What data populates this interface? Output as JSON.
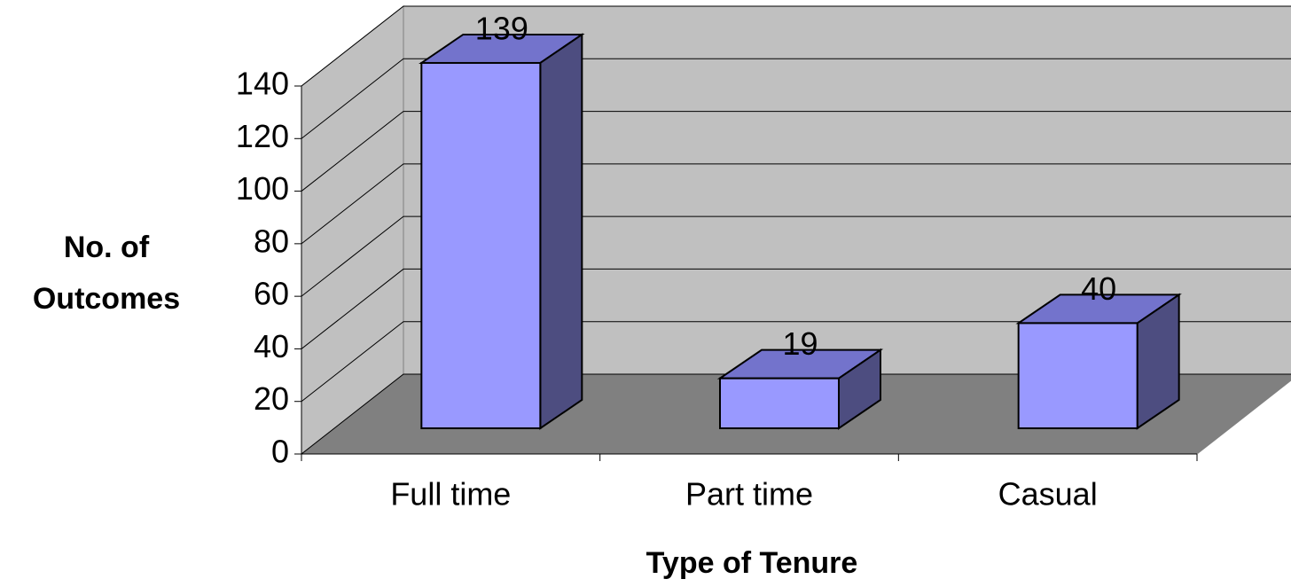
{
  "chart_data": {
    "type": "bar",
    "x_label": "Type of Tenure",
    "y_label": "No. of Outcomes",
    "categories": [
      "Full time",
      "Part time",
      "Casual"
    ],
    "values": [
      139,
      19,
      40
    ],
    "color": "#9999ff",
    "ylim": [
      0,
      140
    ],
    "yticks": [
      0,
      20,
      40,
      60,
      80,
      100,
      120,
      140
    ],
    "grid": true
  }
}
